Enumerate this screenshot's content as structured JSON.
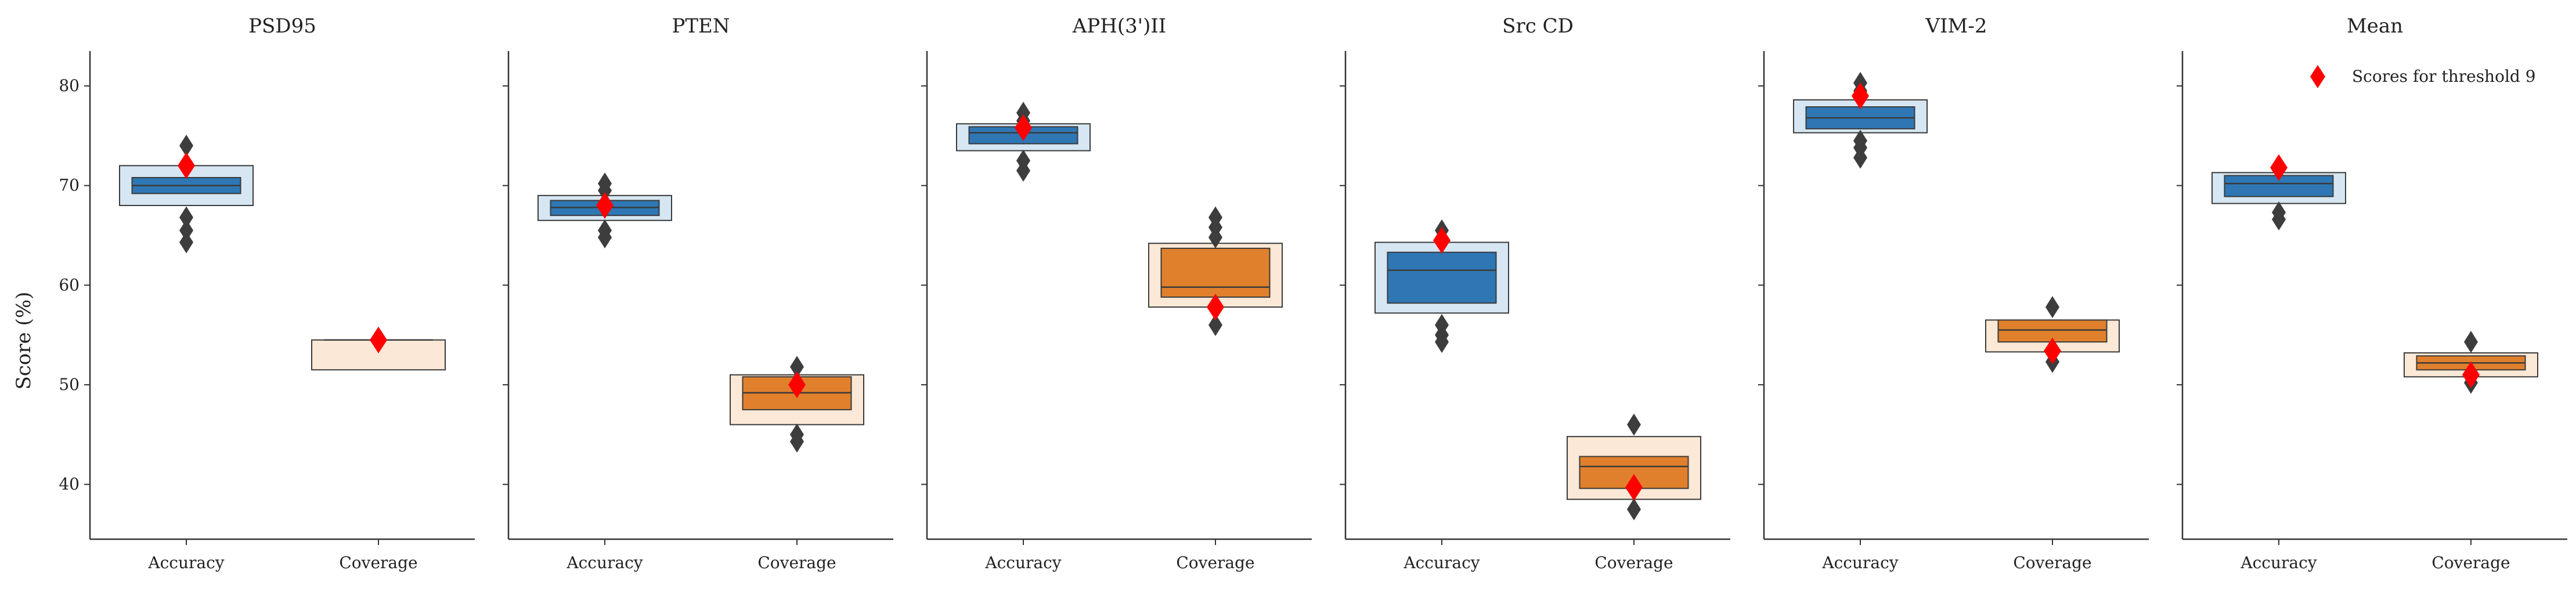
{
  "chart_data": {
    "type": "boxen",
    "ylabel": "Score (%)",
    "ylim": [
      34.5,
      83.5
    ],
    "yticks": [
      40,
      50,
      60,
      70,
      80
    ],
    "categories": [
      "Accuracy",
      "Coverage"
    ],
    "legend": {
      "label": "Scores for threshold 9",
      "placement": "top-right",
      "color": "#ff0000",
      "marker": "diamond"
    },
    "colors": {
      "accuracy": "#2e77b4",
      "accuracy_light": "#d6e6f2",
      "coverage": "#e0802c",
      "coverage_light": "#fbe8d6",
      "edge": "#3a3a3a",
      "outlier": "#3d3d3d",
      "highlight": "#ff0000"
    },
    "panels": [
      {
        "title": "PSD95",
        "series": [
          {
            "category": "Accuracy",
            "median": 70.0,
            "boxes": [
              {
                "low": 69.2,
                "high": 70.8
              },
              {
                "low": 68.0,
                "high": 72.0
              }
            ],
            "outliers": [
              74.0,
              66.8,
              65.5,
              64.3
            ],
            "threshold_score": 72.0
          },
          {
            "category": "Coverage",
            "median": 54.5,
            "boxes": [
              {
                "low": 54.5,
                "high": 54.5
              },
              {
                "low": 51.5,
                "high": 54.5
              }
            ],
            "outliers": [],
            "threshold_score": 54.5
          }
        ]
      },
      {
        "title": "PTEN",
        "series": [
          {
            "category": "Accuracy",
            "median": 67.8,
            "boxes": [
              {
                "low": 67.0,
                "high": 68.5
              },
              {
                "low": 66.5,
                "high": 69.0
              }
            ],
            "outliers": [
              70.2,
              69.5,
              65.5,
              64.8
            ],
            "threshold_score": 68.0
          },
          {
            "category": "Coverage",
            "median": 49.2,
            "boxes": [
              {
                "low": 47.5,
                "high": 50.8
              },
              {
                "low": 46.0,
                "high": 51.0
              }
            ],
            "outliers": [
              51.8,
              45.0,
              44.3
            ],
            "threshold_score": 50.0
          }
        ]
      },
      {
        "title": "APH(3')II",
        "series": [
          {
            "category": "Accuracy",
            "median": 75.3,
            "boxes": [
              {
                "low": 74.2,
                "high": 75.9
              },
              {
                "low": 73.5,
                "high": 76.2
              }
            ],
            "outliers": [
              77.3,
              76.5,
              72.5,
              71.5
            ],
            "threshold_score": 75.8
          },
          {
            "category": "Coverage",
            "median": 59.8,
            "boxes": [
              {
                "low": 58.8,
                "high": 63.7
              },
              {
                "low": 57.8,
                "high": 64.2
              }
            ],
            "outliers": [
              66.8,
              65.8,
              64.8,
              56.0
            ],
            "threshold_score": 57.8
          }
        ]
      },
      {
        "title": "Src CD",
        "series": [
          {
            "category": "Accuracy",
            "median": 61.5,
            "boxes": [
              {
                "low": 58.2,
                "high": 63.3
              },
              {
                "low": 57.2,
                "high": 64.3
              }
            ],
            "outliers": [
              65.5,
              56.0,
              55.0,
              54.3
            ],
            "threshold_score": 64.5
          },
          {
            "category": "Coverage",
            "median": 41.8,
            "boxes": [
              {
                "low": 39.6,
                "high": 42.8
              },
              {
                "low": 38.5,
                "high": 44.8
              }
            ],
            "outliers": [
              46.0,
              37.5
            ],
            "threshold_score": 39.7
          }
        ]
      },
      {
        "title": "VIM-2",
        "series": [
          {
            "category": "Accuracy",
            "median": 76.8,
            "boxes": [
              {
                "low": 75.7,
                "high": 77.9
              },
              {
                "low": 75.3,
                "high": 78.6
              }
            ],
            "outliers": [
              80.3,
              79.5,
              74.5,
              73.8,
              72.8
            ],
            "threshold_score": 79.0
          },
          {
            "category": "Coverage",
            "median": 55.5,
            "boxes": [
              {
                "low": 54.3,
                "high": 56.5
              },
              {
                "low": 53.3,
                "high": 56.5
              }
            ],
            "outliers": [
              57.8,
              52.3
            ],
            "threshold_score": 53.4
          }
        ]
      },
      {
        "title": "Mean",
        "series": [
          {
            "category": "Accuracy",
            "median": 70.2,
            "boxes": [
              {
                "low": 68.9,
                "high": 71.0
              },
              {
                "low": 68.2,
                "high": 71.3
              }
            ],
            "outliers": [
              67.3,
              66.6
            ],
            "threshold_score": 71.8
          },
          {
            "category": "Coverage",
            "median": 52.2,
            "boxes": [
              {
                "low": 51.5,
                "high": 52.9
              },
              {
                "low": 50.8,
                "high": 53.2
              }
            ],
            "outliers": [
              54.3,
              50.2
            ],
            "threshold_score": 51.0
          }
        ]
      }
    ]
  }
}
